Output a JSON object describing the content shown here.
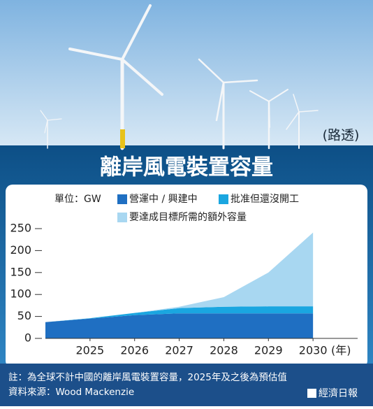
{
  "photo": {
    "credit": "(路透)"
  },
  "chart_data": {
    "type": "stacked-area",
    "title": "離岸風電裝置容量",
    "unit": "單位：GW",
    "x_unit": "(年)",
    "x": [
      2024,
      2025,
      2026,
      2027,
      2028,
      2029,
      2030
    ],
    "series": [
      {
        "name": "營運中 / 興建中",
        "color": "#1f6fc2",
        "values": [
          37,
          45,
          53,
          57,
          57,
          57,
          57
        ]
      },
      {
        "name": "批准但還沒開工",
        "color": "#1aa6e0",
        "values": [
          0,
          1,
          5,
          12,
          15,
          16,
          16
        ]
      },
      {
        "name": "要達成目標所需的額外容量",
        "color": "#a8d7f1",
        "values": [
          0,
          0,
          0,
          3,
          22,
          77,
          168
        ]
      }
    ],
    "xlim": [
      2024,
      2031
    ],
    "xticks": [
      2025,
      2026,
      2027,
      2028,
      2029,
      2030
    ],
    "ylim": [
      0,
      250
    ],
    "yticks": [
      0,
      50,
      100,
      150,
      200,
      250
    ]
  },
  "footer": {
    "note": "註：為全球不計中國的離岸風電裝置容量，2025年及之後為預估值",
    "source": "資料來源：Wood Mackenzie",
    "brand": "經濟日報"
  }
}
